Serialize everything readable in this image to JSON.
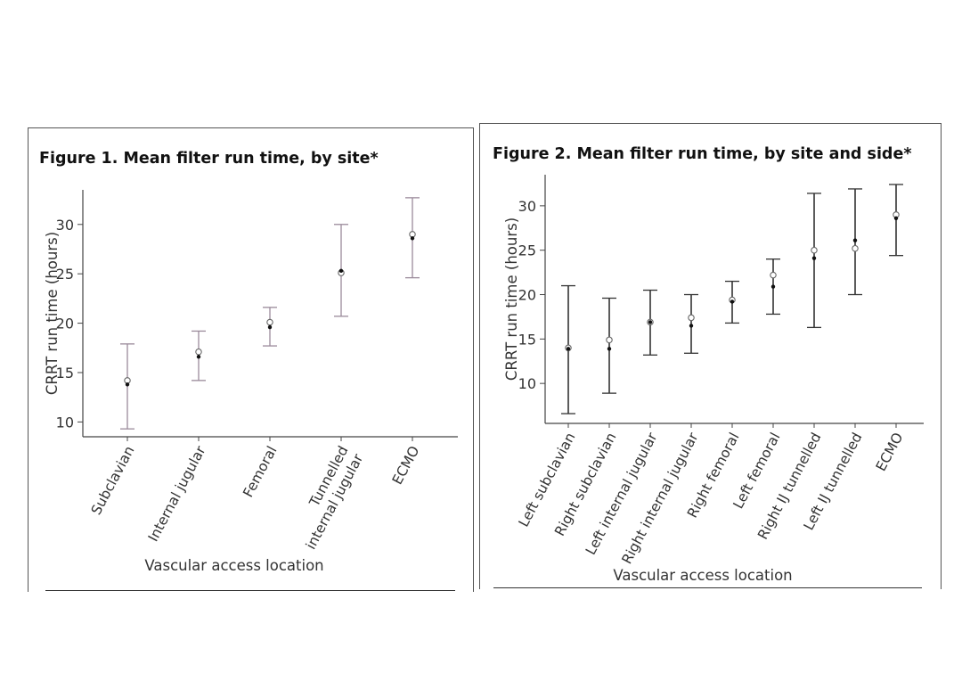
{
  "figure1": {
    "title": "Figure 1. Mean filter run time, by site*",
    "chart_data": {
      "type": "scatter",
      "title": "Figure 1. Mean filter run time, by site*",
      "xlabel": "Vascular access location",
      "ylabel": "CRRT run time (hours)",
      "ylim": [
        8.5,
        33.5
      ],
      "yticks": [
        10,
        15,
        20,
        25,
        30
      ],
      "categories": [
        [
          "Subclavian"
        ],
        [
          "Internal jugular"
        ],
        [
          "Femoral"
        ],
        [
          "Tunnelled",
          "internal jugular"
        ],
        [
          "ECMO"
        ]
      ],
      "series": [
        {
          "values": [
            13.8,
            16.6,
            19.6,
            25.3,
            28.6
          ]
        },
        {
          "values": [
            14.2,
            17.1,
            20.1,
            25.1,
            29.0
          ]
        }
      ],
      "error_low": [
        9.3,
        14.2,
        17.7,
        20.7,
        24.6
      ],
      "error_high": [
        17.9,
        19.2,
        21.6,
        30.0,
        32.7
      ],
      "grid": false
    }
  },
  "figure2": {
    "title": "Figure 2. Mean filter run time, by site and side*",
    "chart_data": {
      "type": "scatter",
      "title": "Figure 2. Mean filter run time, by site and side*",
      "xlabel": "Vascular access location",
      "ylabel": "CRRT run time (hours)",
      "ylim": [
        5.5,
        33.5
      ],
      "yticks": [
        10,
        15,
        20,
        25,
        30
      ],
      "categories": [
        "Left subclavian",
        "Right subclavian",
        "Left internal jugular",
        "Right internal jugular",
        "Right femoral",
        "Left femoral",
        "Right IJ tunnelled",
        "Left IJ tunnelled",
        "ECMO"
      ],
      "series": [
        {
          "values": [
            13.9,
            13.9,
            16.9,
            16.5,
            19.2,
            20.9,
            24.1,
            26.1,
            28.6
          ]
        },
        {
          "values": [
            14.0,
            14.9,
            16.9,
            17.4,
            19.4,
            22.2,
            25.0,
            25.2,
            29.0
          ]
        }
      ],
      "error_low": [
        6.6,
        8.9,
        13.2,
        13.4,
        16.8,
        17.8,
        16.3,
        20.0,
        24.4
      ],
      "error_high": [
        21.0,
        19.6,
        20.5,
        20.0,
        21.5,
        24.0,
        31.4,
        31.9,
        32.4
      ],
      "grid": false
    }
  },
  "colors": {
    "axis": "#444444",
    "error_bar_fig1": "#9a8a9a",
    "error_bar_fig2": "#333333",
    "mean_dot": "#111111",
    "median_circle": "#666666"
  }
}
